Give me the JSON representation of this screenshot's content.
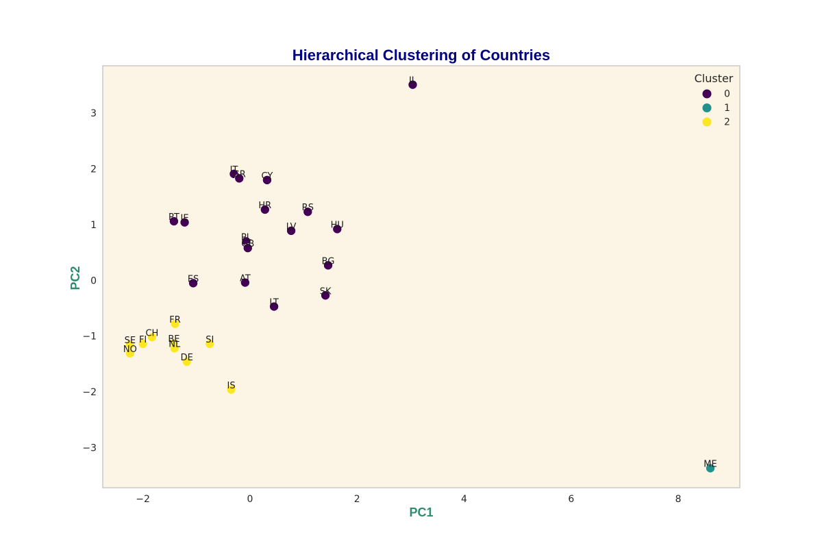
{
  "chart_data": {
    "type": "scatter",
    "title": "Hierarchical Clustering of Countries",
    "xlabel": "PC1",
    "ylabel": "PC2",
    "xlim": [
      -2.75,
      9.15
    ],
    "ylim": [
      -3.72,
      3.85
    ],
    "xticks": [
      -2,
      0,
      2,
      4,
      6,
      8
    ],
    "yticks": [
      -3,
      -2,
      -1,
      0,
      1,
      2,
      3
    ],
    "xtick_labels": [
      "−2",
      "0",
      "2",
      "4",
      "6",
      "8"
    ],
    "ytick_labels": [
      "−3",
      "−2",
      "−1",
      "0",
      "1",
      "2",
      "3"
    ],
    "grid": false,
    "legend": {
      "title": "Cluster",
      "placement": "top-right",
      "entries": [
        {
          "label": "0",
          "color": "#440154"
        },
        {
          "label": "1",
          "color": "#21918c"
        },
        {
          "label": "2",
          "color": "#fde725"
        }
      ]
    },
    "colors": {
      "plot_background": "#fcf4e4",
      "frame": "#cccccc",
      "title": "#000080",
      "axis_label": "#2e8b6f"
    },
    "points": [
      {
        "label": "IL",
        "x": 3.04,
        "y": 3.51,
        "cluster": 0
      },
      {
        "label": "IT",
        "x": -0.3,
        "y": 1.91,
        "cluster": 0
      },
      {
        "label": "GR",
        "x": -0.2,
        "y": 1.83,
        "cluster": 0
      },
      {
        "label": "CY",
        "x": 0.32,
        "y": 1.8,
        "cluster": 0
      },
      {
        "label": "HR",
        "x": 0.28,
        "y": 1.27,
        "cluster": 0
      },
      {
        "label": "RS",
        "x": 1.08,
        "y": 1.23,
        "cluster": 0
      },
      {
        "label": "PT",
        "x": -1.42,
        "y": 1.06,
        "cluster": 0
      },
      {
        "label": "IE",
        "x": -1.22,
        "y": 1.04,
        "cluster": 0
      },
      {
        "label": "LV",
        "x": 0.77,
        "y": 0.89,
        "cluster": 0
      },
      {
        "label": "HU",
        "x": 1.63,
        "y": 0.92,
        "cluster": 0
      },
      {
        "label": "PL",
        "x": -0.07,
        "y": 0.7,
        "cluster": 0
      },
      {
        "label": "GB",
        "x": -0.04,
        "y": 0.58,
        "cluster": 0
      },
      {
        "label": "BG",
        "x": 1.46,
        "y": 0.27,
        "cluster": 0
      },
      {
        "label": "ES",
        "x": -1.06,
        "y": -0.05,
        "cluster": 0
      },
      {
        "label": "AT",
        "x": -0.09,
        "y": -0.04,
        "cluster": 0
      },
      {
        "label": "SK",
        "x": 1.41,
        "y": -0.27,
        "cluster": 0
      },
      {
        "label": "LT",
        "x": 0.45,
        "y": -0.47,
        "cluster": 0
      },
      {
        "label": "ME",
        "x": 8.6,
        "y": -3.37,
        "cluster": 1
      },
      {
        "label": "FR",
        "x": -1.4,
        "y": -0.78,
        "cluster": 2
      },
      {
        "label": "CH",
        "x": -1.83,
        "y": -1.02,
        "cluster": 2
      },
      {
        "label": "SE",
        "x": -2.24,
        "y": -1.15,
        "cluster": 2
      },
      {
        "label": "FI",
        "x": -2.0,
        "y": -1.14,
        "cluster": 2
      },
      {
        "label": "BE",
        "x": -1.42,
        "y": -1.13,
        "cluster": 2
      },
      {
        "label": "NL",
        "x": -1.41,
        "y": -1.22,
        "cluster": 2
      },
      {
        "label": "SI",
        "x": -0.75,
        "y": -1.14,
        "cluster": 2
      },
      {
        "label": "NO",
        "x": -2.24,
        "y": -1.31,
        "cluster": 2
      },
      {
        "label": "DE",
        "x": -1.18,
        "y": -1.46,
        "cluster": 2
      },
      {
        "label": "IS",
        "x": -0.35,
        "y": -1.96,
        "cluster": 2
      }
    ]
  }
}
